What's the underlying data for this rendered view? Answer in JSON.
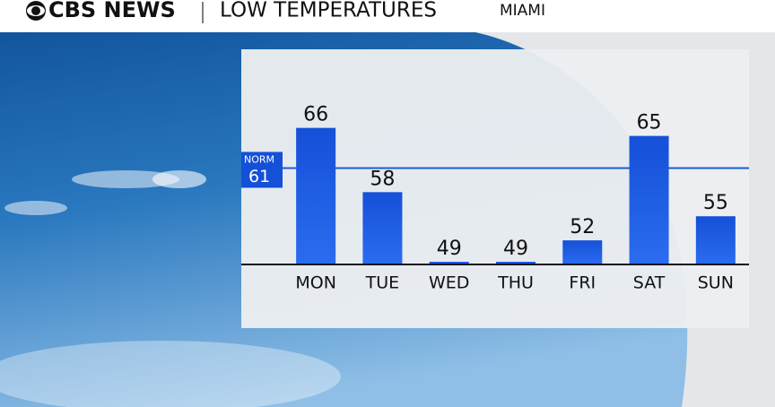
{
  "brand": "CBS NEWS",
  "chart_data": {
    "type": "bar",
    "title": "LOW TEMPERATURES",
    "subtitle": "MIAMI",
    "categories": [
      "MON",
      "TUE",
      "WED",
      "THU",
      "FRI",
      "SAT",
      "SUN"
    ],
    "values": [
      66,
      58,
      49,
      49,
      52,
      65,
      55
    ],
    "color": "#1554e0",
    "ylim": [
      49,
      75
    ],
    "norm": {
      "label": "NORM",
      "value": 61
    }
  }
}
